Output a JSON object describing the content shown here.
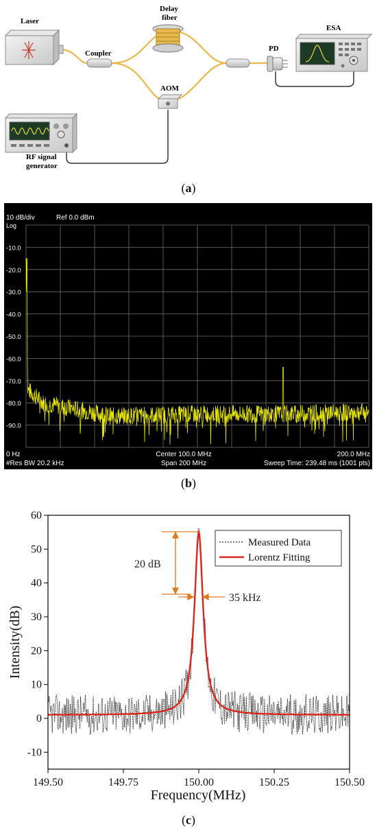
{
  "panel_a": {
    "caption_letter": "a",
    "labels": {
      "laser": "Laser",
      "coupler": "Coupler",
      "delay_fiber_line1": "Delay",
      "delay_fiber_line2": "fiber",
      "aom": "AOM",
      "pd": "PD",
      "esa": "ESA",
      "rf_line1": "RF signal",
      "rf_line2": "generator"
    },
    "colors": {
      "fiber": "#e8b84a",
      "cable": "#333333"
    }
  },
  "panel_b": {
    "caption_letter": "b",
    "header_left": "10 dB/div",
    "header_ref": "Ref 0.0 dBm",
    "log_label": "Log",
    "bottom_left": "0 Hz",
    "bottom_center": "Center 100.0 MHz",
    "bottom_right": "200.0 MHz",
    "footer_left": "#Res BW 20.2 kHz",
    "footer_center": "Span 200 MHz",
    "footer_right": "Sweep Time: 239.48 ms (1001 pts)",
    "colors": {
      "background": "#000000",
      "grid": "#6f6f6f",
      "trace": "#e6e600",
      "text": "#ffffff"
    }
  },
  "chart_data": [
    {
      "type": "line",
      "panel": "b",
      "xlabel": "",
      "ylabel": "",
      "xlim": [
        0,
        200
      ],
      "ylim": [
        -100,
        0
      ],
      "y_tick_labels": [
        "-10.0",
        "-20.0",
        "-30.0",
        "-40.0",
        "-50.0",
        "-60.0",
        "-70.0",
        "-80.0",
        "-90.0"
      ],
      "y_ticks": [
        -10,
        -20,
        -30,
        -40,
        -50,
        -60,
        -70,
        -80,
        -90
      ],
      "series": [
        {
          "noise_floor_dBm": [
            [
              0,
              -15
            ],
            [
              1,
              -74
            ],
            [
              10,
              -80
            ],
            [
              50,
              -86
            ],
            [
              100,
              -85
            ],
            [
              150,
              -85
            ],
            [
              200,
              -84
            ]
          ],
          "spikes": [
            [
              0.4,
              -15
            ],
            [
              150,
              -64
            ]
          ],
          "noise_spread_dB": 4
        }
      ]
    },
    {
      "type": "line",
      "panel": "c",
      "xlabel": "Frequency(MHz)",
      "ylabel": "Intensity(dB)",
      "xlim": [
        149.5,
        150.5
      ],
      "ylim": [
        -15,
        60
      ],
      "x_ticks": [
        149.5,
        149.75,
        150.0,
        150.25,
        150.5
      ],
      "x_tick_labels": [
        "149.50",
        "149.75",
        "150.00",
        "150.25",
        "150.50"
      ],
      "y_ticks": [
        -10,
        0,
        10,
        20,
        30,
        40,
        50,
        60
      ],
      "y_tick_labels": [
        "-10",
        "0",
        "10",
        "20",
        "30",
        "40",
        "50",
        "60"
      ],
      "legend": "top-right",
      "annotations": [
        "20 dB",
        "35 kHz"
      ],
      "series": [
        {
          "name": "Measured Data",
          "style": "dotted",
          "color": "#222222",
          "peak": 56,
          "floor": 1,
          "noise_amplitude_dB": 6
        },
        {
          "name": "Lorentz Fitting",
          "style": "solid",
          "color": "#d9261c",
          "center_MHz": 150.0,
          "peak": 55,
          "baseline": 1,
          "fwhm_MHz": 0.035
        }
      ]
    }
  ],
  "panel_c": {
    "caption_letter": "c"
  }
}
